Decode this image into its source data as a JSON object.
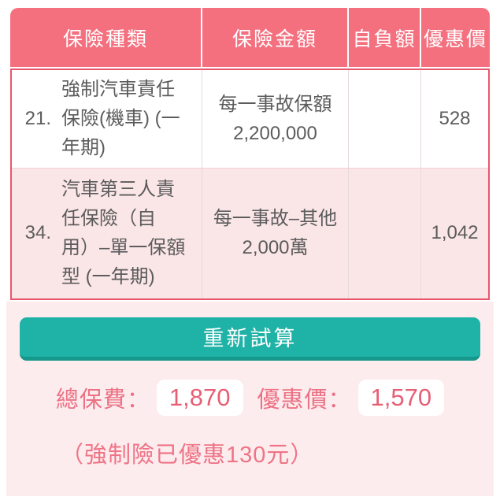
{
  "table": {
    "headers": {
      "type": "保險種類",
      "amount": "保險金額",
      "deductible": "自負額",
      "price": "優惠價"
    },
    "rows": [
      {
        "num": "21.",
        "name": "強制汽車責任保險(機車) (一年期)",
        "amount": "每一事故保額 2,200,000",
        "deductible": "",
        "price": "528"
      },
      {
        "num": "34.",
        "name": "汽車第三人責任保險（自用）–單一保額型 (一年期)",
        "amount": "每一事故–其他2,000萬",
        "deductible": "",
        "price": "1,042"
      }
    ]
  },
  "actions": {
    "recalculate_label": "重新試算"
  },
  "summary": {
    "total_label": "總保費：",
    "total_value": "1,870",
    "discount_label": "優惠價：",
    "discount_value": "1,570",
    "note": "（強制險已優惠130元）"
  },
  "colors": {
    "header_pink": "#f4707f",
    "table_border": "#e8566c",
    "alt_row_bg": "#fbe6e7",
    "section_bg": "#fdecee",
    "button_teal": "#1fb2a6",
    "button_edge": "#17988d",
    "accent_text": "#ec7184",
    "value_text": "#e65f75",
    "cell_text": "#5c5c5c"
  }
}
